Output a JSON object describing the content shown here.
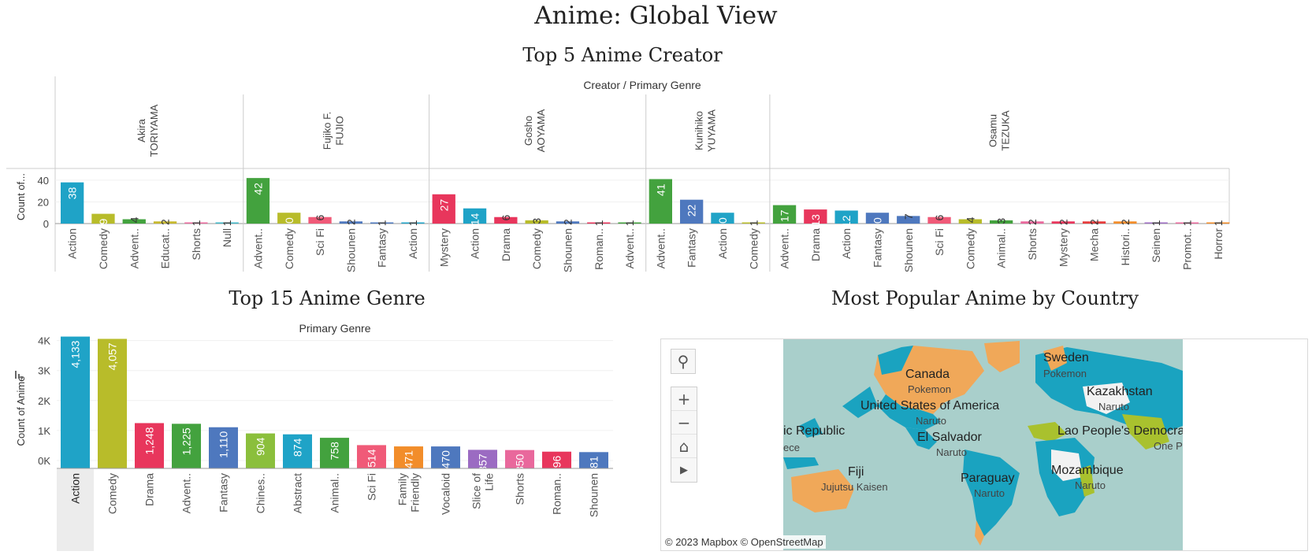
{
  "dashboard": {
    "title": "Anime: Global View"
  },
  "creators_chart": {
    "heading": "Top 5 Anime Creator",
    "header": "Creator / Primary Genre",
    "yaxis_label": "Count of...",
    "y_ticks": [
      "0",
      "20",
      "40"
    ],
    "colors": {
      "Action": "#1fa3c7",
      "Comedy": "#b8bc2a",
      "Adventure": "#43a23e",
      "Education": "#c7b92f",
      "Shorts": "#e9689c",
      "Null": "#3fb7c7",
      "Sci Fi": "#f05a78",
      "Shounen": "#4e78be",
      "Fantasy": "#4e78be",
      "Mystery": "#e8365c",
      "Drama": "#e8365c",
      "Romance": "#e8365c",
      "Animal": "#43a23e",
      "Mecha": "#e63c3c",
      "Historical": "#f28d2a",
      "Seinen": "#9b6bc2",
      "Promotional": "#e9689c",
      "Horror": "#f28d2a"
    }
  },
  "chart_data": [
    {
      "type": "bar",
      "title": "Top 5 Anime Creator",
      "header": "Creator / Primary Genre",
      "ylabel": "Count of...",
      "ylim": [
        0,
        45
      ],
      "groups": [
        {
          "creator": "Akira TORIYAMA",
          "bars": [
            {
              "label": "Action",
              "category": "Action",
              "value": 38
            },
            {
              "label": "Comedy",
              "category": "Comedy",
              "value": 9
            },
            {
              "label": "Advent..",
              "category": "Adventure",
              "value": 4
            },
            {
              "label": "Educat..",
              "category": "Education",
              "value": 2
            },
            {
              "label": "Shorts",
              "category": "Shorts",
              "value": 1
            },
            {
              "label": "Null",
              "category": "Null",
              "value": 1
            }
          ]
        },
        {
          "creator": "Fujiko F. FUJIO",
          "bars": [
            {
              "label": "Advent..",
              "category": "Adventure",
              "value": 42
            },
            {
              "label": "Comedy",
              "category": "Comedy",
              "value": 10
            },
            {
              "label": "Sci Fi",
              "category": "Sci Fi",
              "value": 6
            },
            {
              "label": "Shounen",
              "category": "Shounen",
              "value": 2
            },
            {
              "label": "Fantasy",
              "category": "Fantasy",
              "value": 1
            },
            {
              "label": "Action",
              "category": "Action",
              "value": 1
            }
          ]
        },
        {
          "creator": "Gosho AOYAMA",
          "bars": [
            {
              "label": "Mystery",
              "category": "Mystery",
              "value": 27
            },
            {
              "label": "Action",
              "category": "Action",
              "value": 14
            },
            {
              "label": "Drama",
              "category": "Drama",
              "value": 6
            },
            {
              "label": "Comedy",
              "category": "Comedy",
              "value": 3
            },
            {
              "label": "Shounen",
              "category": "Shounen",
              "value": 2
            },
            {
              "label": "Roman..",
              "category": "Romance",
              "value": 1
            },
            {
              "label": "Advent..",
              "category": "Adventure",
              "value": 1
            }
          ]
        },
        {
          "creator": "Kunihiko YUYAMA",
          "bars": [
            {
              "label": "Advent..",
              "category": "Adventure",
              "value": 41
            },
            {
              "label": "Fantasy",
              "category": "Fantasy",
              "value": 22
            },
            {
              "label": "Action",
              "category": "Action",
              "value": 10
            },
            {
              "label": "Comedy",
              "category": "Comedy",
              "value": 1
            }
          ]
        },
        {
          "creator": "Osamu TEZUKA",
          "bars": [
            {
              "label": "Advent..",
              "category": "Adventure",
              "value": 17
            },
            {
              "label": "Drama",
              "category": "Drama",
              "value": 13
            },
            {
              "label": "Action",
              "category": "Action",
              "value": 12
            },
            {
              "label": "Fantasy",
              "category": "Fantasy",
              "value": 10
            },
            {
              "label": "Shounen",
              "category": "Shounen",
              "value": 7
            },
            {
              "label": "Sci Fi",
              "category": "Sci Fi",
              "value": 6
            },
            {
              "label": "Comedy",
              "category": "Comedy",
              "value": 4
            },
            {
              "label": "Animal..",
              "category": "Animal",
              "value": 3
            },
            {
              "label": "Shorts",
              "category": "Shorts",
              "value": 2
            },
            {
              "label": "Mystery",
              "category": "Mystery",
              "value": 2
            },
            {
              "label": "Mecha",
              "category": "Mecha",
              "value": 2
            },
            {
              "label": "Histori..",
              "category": "Historical",
              "value": 2
            },
            {
              "label": "Seinen",
              "category": "Seinen",
              "value": 1
            },
            {
              "label": "Promot..",
              "category": "Promotional",
              "value": 1
            },
            {
              "label": "Horror",
              "category": "Horror",
              "value": 1
            }
          ]
        }
      ]
    },
    {
      "type": "bar",
      "title": "Top 15 Anime Genre",
      "header": "Primary Genre",
      "ylabel": "Count of Anime",
      "ylim": [
        0,
        4200
      ],
      "y_ticks": [
        "0K",
        "1K",
        "2K",
        "3K",
        "4K"
      ],
      "bars": [
        {
          "label": "Action",
          "value": 4133,
          "value_label": "4,133",
          "color": "#1fa3c7"
        },
        {
          "label": "Comedy",
          "value": 4057,
          "value_label": "4,057",
          "color": "#b8bc2a"
        },
        {
          "label": "Drama",
          "value": 1248,
          "value_label": "1,248",
          "color": "#e8365c"
        },
        {
          "label": "Advent..",
          "value": 1225,
          "value_label": "1,225",
          "color": "#43a23e"
        },
        {
          "label": "Fantasy",
          "value": 1110,
          "value_label": "1,110",
          "color": "#4e78be"
        },
        {
          "label": "Chines..",
          "value": 904,
          "value_label": "904",
          "color": "#8bbf3c"
        },
        {
          "label": "Abstract",
          "value": 874,
          "value_label": "874",
          "color": "#1fa3c7"
        },
        {
          "label": "Animal..",
          "value": 758,
          "value_label": "758",
          "color": "#43a23e"
        },
        {
          "label": "Sci Fi",
          "value": 514,
          "value_label": "514",
          "color": "#f05a78"
        },
        {
          "label": "Family Friendly",
          "value": 471,
          "value_label": "471",
          "color": "#f28d2a"
        },
        {
          "label": "Vocaloid",
          "value": 470,
          "value_label": "470",
          "color": "#4e78be"
        },
        {
          "label": "Slice of Life",
          "value": 357,
          "value_label": "357",
          "color": "#9b6bc2"
        },
        {
          "label": "Shorts",
          "value": 350,
          "value_label": "350",
          "color": "#e9689c"
        },
        {
          "label": "Roman..",
          "value": 296,
          "value_label": "296",
          "color": "#e8365c"
        },
        {
          "label": "Shounen",
          "value": 281,
          "value_label": "281",
          "color": "#4e78be"
        }
      ]
    }
  ],
  "map": {
    "heading": "Most Popular Anime by Country",
    "attribution": "© 2023 Mapbox  © OpenStreetMap",
    "tools": [
      "search-icon",
      "zoom-in-icon",
      "zoom-out-icon",
      "home-icon",
      "play-icon"
    ],
    "countries": [
      {
        "country": "Canada",
        "anime": "Pokemon"
      },
      {
        "country": "United States of America",
        "anime": "Naruto"
      },
      {
        "country": "El Salvador",
        "anime": "Naruto"
      },
      {
        "country": "ic Republic",
        "anime": "ece"
      },
      {
        "country": "Fiji",
        "anime": "Jujutsu Kaisen"
      },
      {
        "country": "Paraguay",
        "anime": "Naruto"
      },
      {
        "country": "Sweden",
        "anime": "Pokemon"
      },
      {
        "country": "Kazakhstan",
        "anime": "Naruto"
      },
      {
        "country": "Lao People's Democrat",
        "anime": "One P"
      },
      {
        "country": "Mozambique",
        "anime": "Naruto"
      }
    ],
    "colors": {
      "ocean": "#a9cfcb",
      "naruto": "#1aa3c0",
      "pokemon": "#f0a859",
      "one_piece": "#a9c12e",
      "other": "#f2f2f2"
    }
  }
}
